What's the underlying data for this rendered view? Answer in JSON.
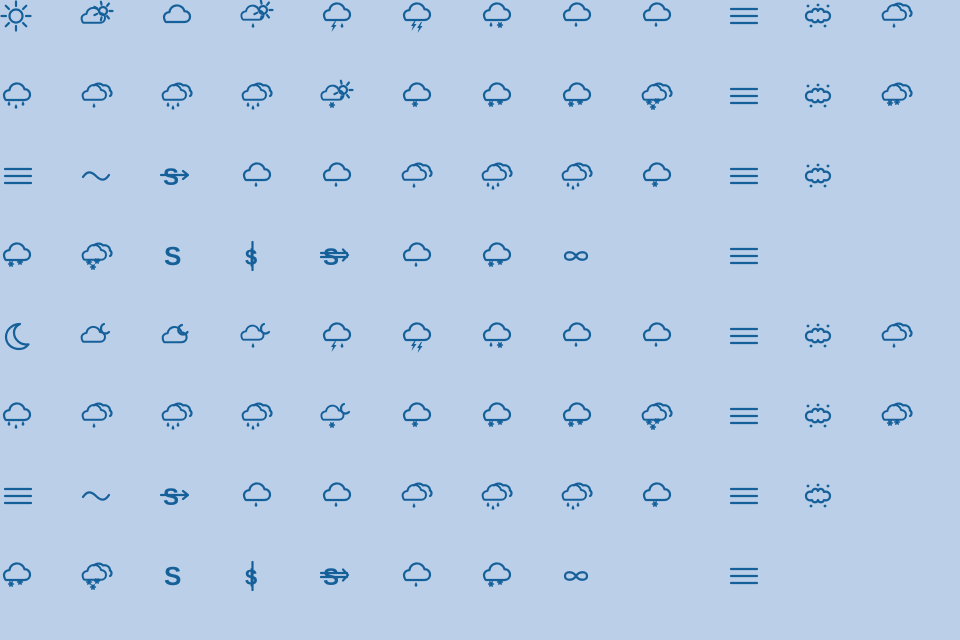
{
  "colors": {
    "background": "#bbcfe9",
    "icon": "#16609a"
  },
  "icon_rows": [
    [
      "sun-icon",
      "partly-cloudy-day-icon",
      "cloud-icon",
      "partly-cloudy-day-drizzle-icon",
      "thunderstorm-rain-icon",
      "thunderstorm-icon",
      "sleet-icon",
      "rain-icon",
      "rain-icon",
      "fog-icon",
      "hail-icon",
      "clouds-rain-icon"
    ],
    [
      "heavy-rain-icon",
      "clouds-rain-icon",
      "clouds-heavy-rain-icon",
      "clouds-heavy-rain-icon",
      "partly-cloudy-day-snow-icon",
      "light-snow-icon",
      "snow-icon",
      "snow-icon",
      "heavy-snow-icon",
      "fog-icon",
      "hail-icon",
      "clouds-snow-icon"
    ],
    [
      "fog-icon",
      "haze-icon",
      "wind-icon",
      "rain-icon",
      "rain-icon",
      "clouds-rain-icon",
      "clouds-heavy-rain-icon",
      "clouds-heavy-rain-icon",
      "light-snow-icon",
      "fog-icon",
      "hail-icon",
      ""
    ],
    [
      "snow-icon",
      "heavy-snow-icon",
      "dust-icon",
      "sandstorm-icon",
      "strong-wind-icon",
      "rain-icon",
      "snow-icon",
      "infinity-icon",
      "",
      "fog-icon",
      "",
      ""
    ],
    [
      "moon-icon",
      "partly-cloudy-night-icon",
      "cloudy-night-icon",
      "partly-cloudy-night-drizzle-icon",
      "thunderstorm-rain-icon",
      "thunderstorm-icon",
      "sleet-icon",
      "rain-icon",
      "rain-icon",
      "fog-icon",
      "hail-icon",
      "clouds-rain-icon"
    ],
    [
      "heavy-rain-icon",
      "clouds-rain-icon",
      "clouds-heavy-rain-icon",
      "clouds-heavy-rain-icon",
      "partly-cloudy-night-snow-icon",
      "light-snow-icon",
      "snow-icon",
      "snow-icon",
      "heavy-snow-icon",
      "fog-icon",
      "hail-icon",
      "clouds-snow-icon"
    ],
    [
      "fog-icon",
      "haze-icon",
      "wind-icon",
      "rain-icon",
      "rain-icon",
      "clouds-rain-icon",
      "clouds-heavy-rain-icon",
      "clouds-heavy-rain-icon",
      "light-snow-icon",
      "fog-icon",
      "hail-icon",
      ""
    ],
    [
      "snow-icon",
      "heavy-snow-icon",
      "dust-icon",
      "sandstorm-icon",
      "strong-wind-icon",
      "rain-icon",
      "snow-icon",
      "infinity-icon",
      "",
      "fog-icon",
      "",
      ""
    ]
  ]
}
